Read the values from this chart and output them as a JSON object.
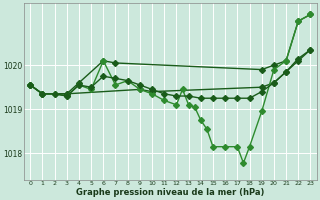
{
  "bg_color": "#cce8dc",
  "grid_color": "#ffffff",
  "dark_green": "#1a5c1a",
  "light_green": "#2e8b2e",
  "title": "Graphe pression niveau de la mer (hPa)",
  "xlim": [
    -0.5,
    23.5
  ],
  "ylim": [
    1017.4,
    1021.4
  ],
  "yticks": [
    1018,
    1019,
    1020
  ],
  "xticks": [
    0,
    1,
    2,
    3,
    4,
    5,
    6,
    7,
    8,
    9,
    10,
    11,
    12,
    13,
    14,
    15,
    16,
    17,
    18,
    19,
    20,
    21,
    22,
    23
  ],
  "series": [
    {
      "x": [
        0,
        1,
        3,
        4,
        6,
        7,
        19,
        20,
        21,
        22,
        23
      ],
      "y": [
        1019.55,
        1019.35,
        1019.35,
        1019.6,
        1020.1,
        1020.05,
        1019.9,
        1020.0,
        1020.1,
        1021.0,
        1021.15
      ],
      "color": "#1a5c1a",
      "lw": 1.0,
      "ms": 3.0
    },
    {
      "x": [
        0,
        1,
        3,
        9,
        10,
        19,
        20,
        21,
        22,
        23
      ],
      "y": [
        1019.55,
        1019.35,
        1019.35,
        1019.45,
        1019.4,
        1019.5,
        1019.6,
        1019.85,
        1020.15,
        1020.35
      ],
      "color": "#1a5c1a",
      "lw": 1.0,
      "ms": 3.0
    },
    {
      "x": [
        0,
        1,
        2,
        3,
        4,
        5,
        6,
        7,
        8,
        9,
        10,
        11,
        12,
        12.5,
        13,
        13.5,
        14,
        14.5,
        15,
        16,
        17,
        17.5,
        18,
        19,
        20,
        21,
        22,
        23
      ],
      "y": [
        1019.55,
        1019.35,
        1019.35,
        1019.3,
        1019.55,
        1019.45,
        1020.1,
        1019.55,
        1019.65,
        1019.45,
        1019.35,
        1019.2,
        1019.1,
        1019.45,
        1019.1,
        1019.05,
        1018.75,
        1018.55,
        1018.15,
        1018.15,
        1018.15,
        1017.78,
        1018.15,
        1018.95,
        1019.9,
        1020.1,
        1021.0,
        1021.15
      ],
      "color": "#2e8b2e",
      "lw": 1.0,
      "ms": 3.0
    },
    {
      "x": [
        0,
        1,
        2,
        3,
        4,
        5,
        6,
        7,
        8,
        9,
        10,
        11,
        12,
        13,
        14,
        15,
        16,
        17,
        18,
        19,
        20,
        21,
        22,
        23
      ],
      "y": [
        1019.55,
        1019.35,
        1019.35,
        1019.3,
        1019.55,
        1019.5,
        1019.75,
        1019.7,
        1019.65,
        1019.55,
        1019.45,
        1019.35,
        1019.3,
        1019.3,
        1019.25,
        1019.25,
        1019.25,
        1019.25,
        1019.25,
        1019.4,
        1019.6,
        1019.85,
        1020.1,
        1020.35
      ],
      "color": "#1a5c1a",
      "lw": 1.0,
      "ms": 3.0
    }
  ]
}
